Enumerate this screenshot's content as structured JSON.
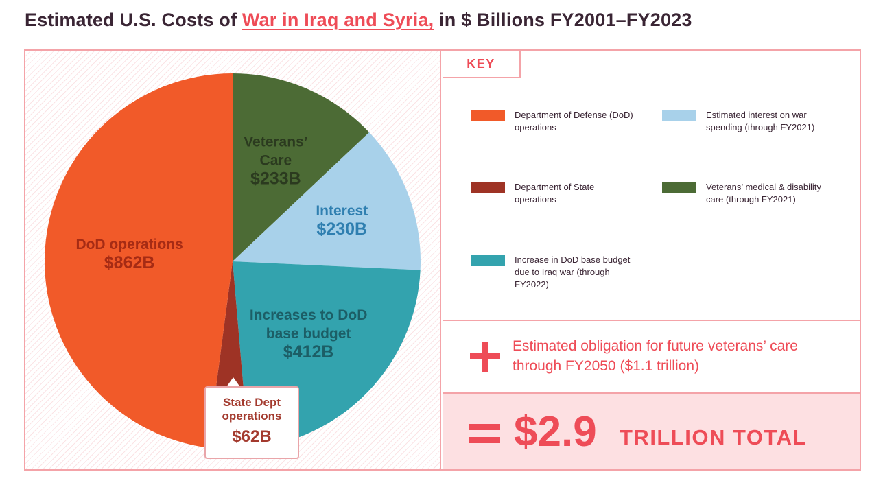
{
  "title": {
    "prefix": "Estimated U.S. Costs of",
    "highlight": "War in Iraq and Syria,",
    "suffix": "in $ Billions FY2001–FY2023"
  },
  "key": {
    "label": "KEY",
    "items": [
      {
        "text": "Department of Defense (DoD) operations",
        "color": "#f15a29"
      },
      {
        "text": "Estimated interest on war spending (through FY2021)",
        "color": "#a8d1ea"
      },
      {
        "text": "Department of State operations",
        "color": "#9e3325"
      },
      {
        "text": "Veterans’ medical & disability care (through FY2021)",
        "color": "#4c6b35"
      },
      {
        "text": "Increase in DoD base budget due to Iraq war (through FY2022)",
        "color": "#33a3ae"
      }
    ]
  },
  "future_obligation": {
    "text": "Estimated obligation for future veterans’ care through FY2050 ($1.1 trillion)"
  },
  "total": {
    "amount": "$2.9",
    "suffix": "TRILLION TOTAL"
  },
  "callout": {
    "name": "State Dept operations",
    "value": "$62B"
  },
  "chart_data": {
    "type": "pie",
    "unit": "$ Billions",
    "slices": [
      {
        "name": "Veterans’ Care",
        "value": 233,
        "label": "$233B",
        "color": "#4c6b35",
        "text_color": "#2b3a1f"
      },
      {
        "name": "Interest",
        "value": 230,
        "label": "$230B",
        "color": "#a8d1ea",
        "text_color": "#2f7fb0"
      },
      {
        "name": "Increases to DoD base budget",
        "value": 412,
        "label": "$412B",
        "color": "#33a3ae",
        "text_color": "#1c5e66"
      },
      {
        "name": "State Dept operations",
        "value": 62,
        "label": "$62B",
        "color": "#9e3325",
        "text_color": "#a33a2e"
      },
      {
        "name": "DoD operations",
        "value": 862,
        "label": "$862B",
        "color": "#f15a29",
        "text_color": "#a62b14"
      }
    ]
  }
}
